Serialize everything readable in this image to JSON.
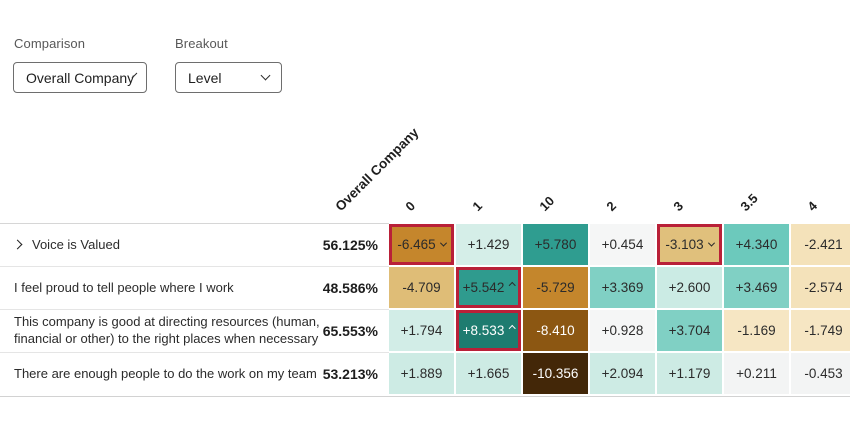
{
  "controls": {
    "comparison": {
      "label": "Comparison",
      "value": "Overall Company"
    },
    "breakout": {
      "label": "Breakout",
      "value": "Level"
    }
  },
  "heatmap": {
    "comparison_column_header": "Overall Company",
    "breakout_columns": [
      "0",
      "1",
      "10",
      "2",
      "3",
      "3.5",
      "4"
    ],
    "flag_border_color": "#B92038",
    "rows": [
      {
        "label": "Voice is Valued",
        "expandable": true,
        "comparison_score": "56.125%",
        "cells": [
          {
            "value": "-6.465",
            "marker": "down",
            "bg": "#C5862C",
            "flagged": true
          },
          {
            "value": "+1.429",
            "marker": null,
            "bg": "#D5EEE8"
          },
          {
            "value": "+5.780",
            "marker": null,
            "bg": "#2F9D90"
          },
          {
            "value": "+0.454",
            "marker": null,
            "bg": "#F5F6F6"
          },
          {
            "value": "-3.103",
            "marker": "down",
            "bg": "#E0C07C",
            "flagged": true
          },
          {
            "value": "+4.340",
            "marker": null,
            "bg": "#6CC9BC"
          },
          {
            "value": "-2.421",
            "marker": null,
            "bg": "#F4E2BA"
          }
        ]
      },
      {
        "label": "I feel proud to tell people where I work",
        "expandable": false,
        "comparison_score": "48.586%",
        "cells": [
          {
            "value": "-4.709",
            "marker": null,
            "bg": "#DFBD77"
          },
          {
            "value": "+5.542",
            "marker": "up",
            "bg": "#2F9B8E",
            "flagged": true
          },
          {
            "value": "-5.729",
            "marker": null,
            "bg": "#C4862C"
          },
          {
            "value": "+3.369",
            "marker": null,
            "bg": "#80D0C4"
          },
          {
            "value": "+2.600",
            "marker": null,
            "bg": "#CBEBE4"
          },
          {
            "value": "+3.469",
            "marker": null,
            "bg": "#80D0C4"
          },
          {
            "value": "-2.574",
            "marker": null,
            "bg": "#F4E2BA"
          }
        ]
      },
      {
        "label": "This company is good at directing resources (human, financial or other) to the right places when necessary",
        "expandable": false,
        "comparison_score": "65.553%",
        "cells": [
          {
            "value": "+1.794",
            "marker": null,
            "bg": "#D2EDE7"
          },
          {
            "value": "+8.533",
            "marker": "up",
            "bg": "#1E7C70",
            "fg": "#FFFFFF",
            "flagged": true
          },
          {
            "value": "-8.410",
            "marker": null,
            "bg": "#8C5712",
            "fg": "#FFFFFF"
          },
          {
            "value": "+0.928",
            "marker": null,
            "bg": "#F5F6F6"
          },
          {
            "value": "+3.704",
            "marker": null,
            "bg": "#80D0C4"
          },
          {
            "value": "-1.169",
            "marker": null,
            "bg": "#F6E6C3"
          },
          {
            "value": "-1.749",
            "marker": null,
            "bg": "#F6E6C3"
          }
        ]
      },
      {
        "label": "There are enough people to do the work on my team",
        "expandable": false,
        "comparison_score": "53.213%",
        "cells": [
          {
            "value": "+1.889",
            "marker": null,
            "bg": "#CDEBE4"
          },
          {
            "value": "+1.665",
            "marker": null,
            "bg": "#CDEBE4"
          },
          {
            "value": "-10.356",
            "marker": null,
            "bg": "#432708",
            "fg": "#FFFFFF"
          },
          {
            "value": "+2.094",
            "marker": null,
            "bg": "#CDEBE4"
          },
          {
            "value": "+1.179",
            "marker": null,
            "bg": "#CDEBE4"
          },
          {
            "value": "+0.211",
            "marker": null,
            "bg": "#F3F4F4"
          },
          {
            "value": "-0.453",
            "marker": null,
            "bg": "#F3F4F4"
          }
        ]
      }
    ]
  }
}
